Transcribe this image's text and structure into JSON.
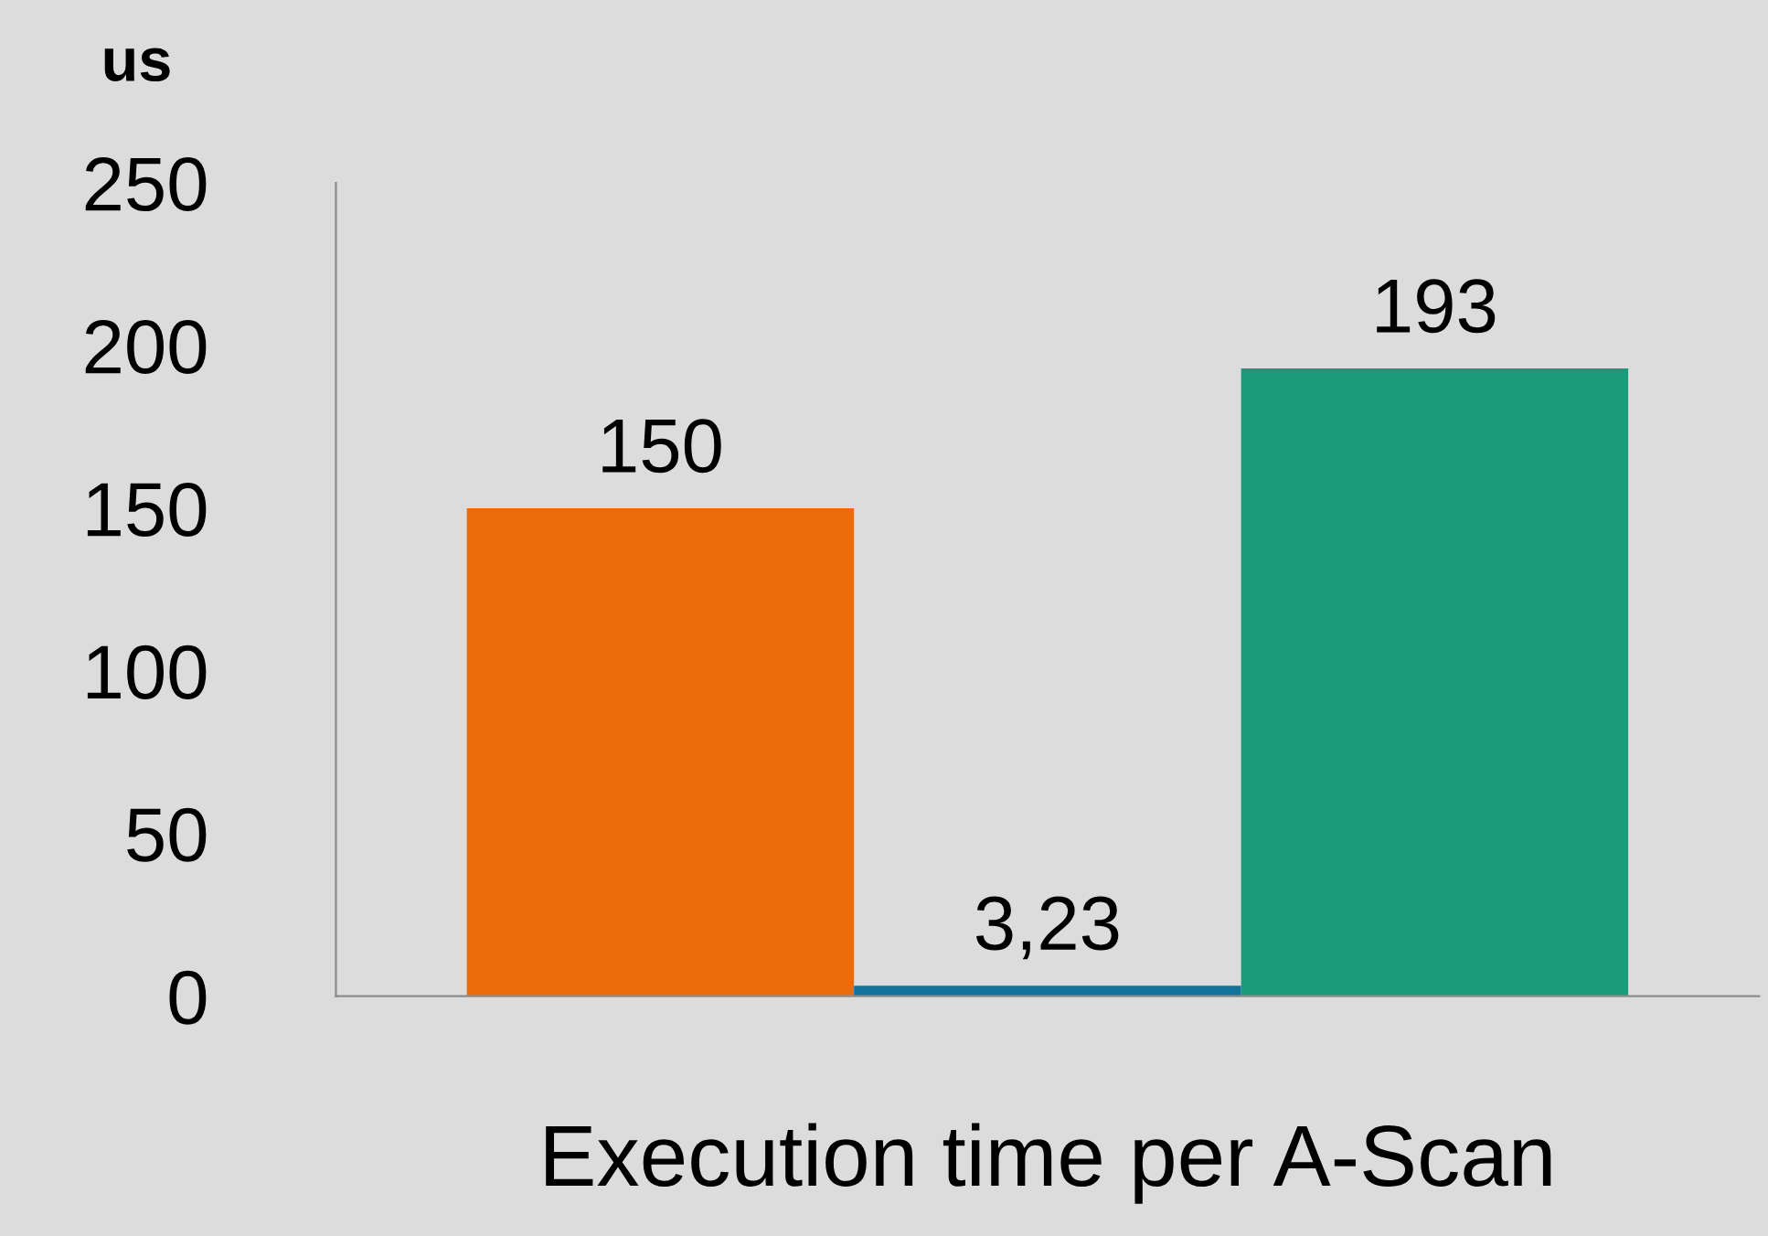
{
  "chart_data": {
    "type": "bar",
    "ylabel": "us",
    "xlabel": "Execution time per A-Scan",
    "categories": [
      null
    ],
    "series": [
      {
        "color": "#ec6c0c",
        "values": [
          150
        ],
        "value_labels": [
          "150"
        ]
      },
      {
        "color": "#11729a",
        "values": [
          3.23
        ],
        "value_labels": [
          "3,23"
        ]
      },
      {
        "color": "#1a9b7b",
        "values": [
          193
        ],
        "value_labels": [
          "193"
        ]
      }
    ],
    "ylim": [
      0,
      250
    ],
    "yticks": [
      0,
      50,
      100,
      150,
      200,
      250
    ],
    "grid": false,
    "legend": false
  }
}
